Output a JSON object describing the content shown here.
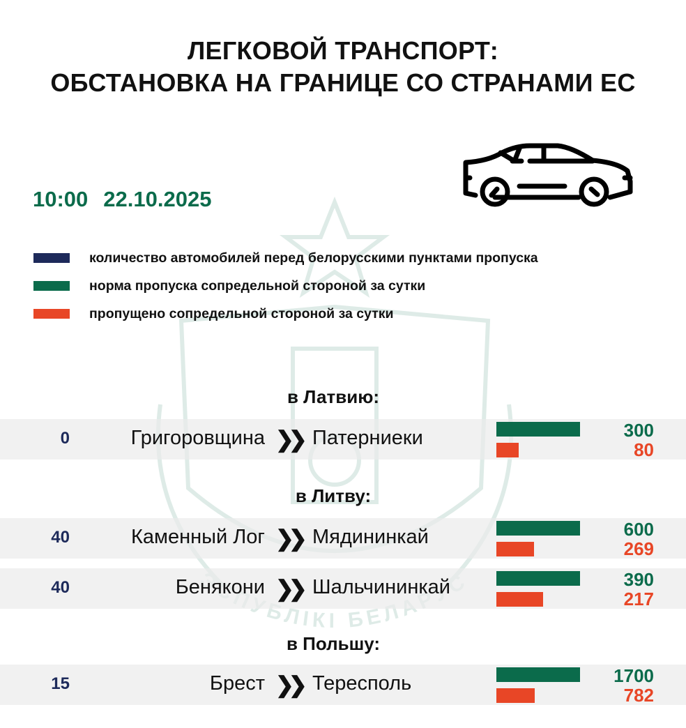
{
  "title_line1": "ЛЕГКОВОЙ ТРАНСПОРТ:",
  "title_line2": "ОБСТАНОВКА НА ГРАНИЦЕ СО СТРАНАМИ ЕС",
  "time": "10:00",
  "date": "22.10.2025",
  "icon": "car-icon",
  "colors": {
    "queue": "#1d2a5a",
    "norm": "#0b6b4b",
    "passed": "#e84626"
  },
  "legend": [
    {
      "label": "количество автомобилей перед белорусскими пунктами пропуска",
      "color": "#1d2a5a"
    },
    {
      "label": "норма пропуска сопредельной стороной за сутки",
      "color": "#0b6b4b"
    },
    {
      "label": "пропущено сопредельной стороной за сутки",
      "color": "#e84626"
    }
  ],
  "watermark": "ПАГРАНІЧНАЯ СЛУЖБА РЭСПУБЛІКІ БЕЛАРУСЬ",
  "sections": [
    {
      "heading": "в Латвию:",
      "rows": [
        {
          "count": "0",
          "from": "Григоровщина",
          "to": "Патерниеки",
          "norm": 300,
          "passed": 80
        }
      ]
    },
    {
      "heading": "в Литву:",
      "rows": [
        {
          "count": "40",
          "from": "Каменный Лог",
          "to": "Мядининкай",
          "norm": 600,
          "passed": 269
        },
        {
          "count": "40",
          "from": "Бенякони",
          "to": "Шальчининкай",
          "norm": 390,
          "passed": 217
        }
      ]
    },
    {
      "heading": "в Польшу:",
      "rows": [
        {
          "count": "15",
          "from": "Брест",
          "to": "Тересполь",
          "norm": 1700,
          "passed": 782
        }
      ]
    }
  ]
}
